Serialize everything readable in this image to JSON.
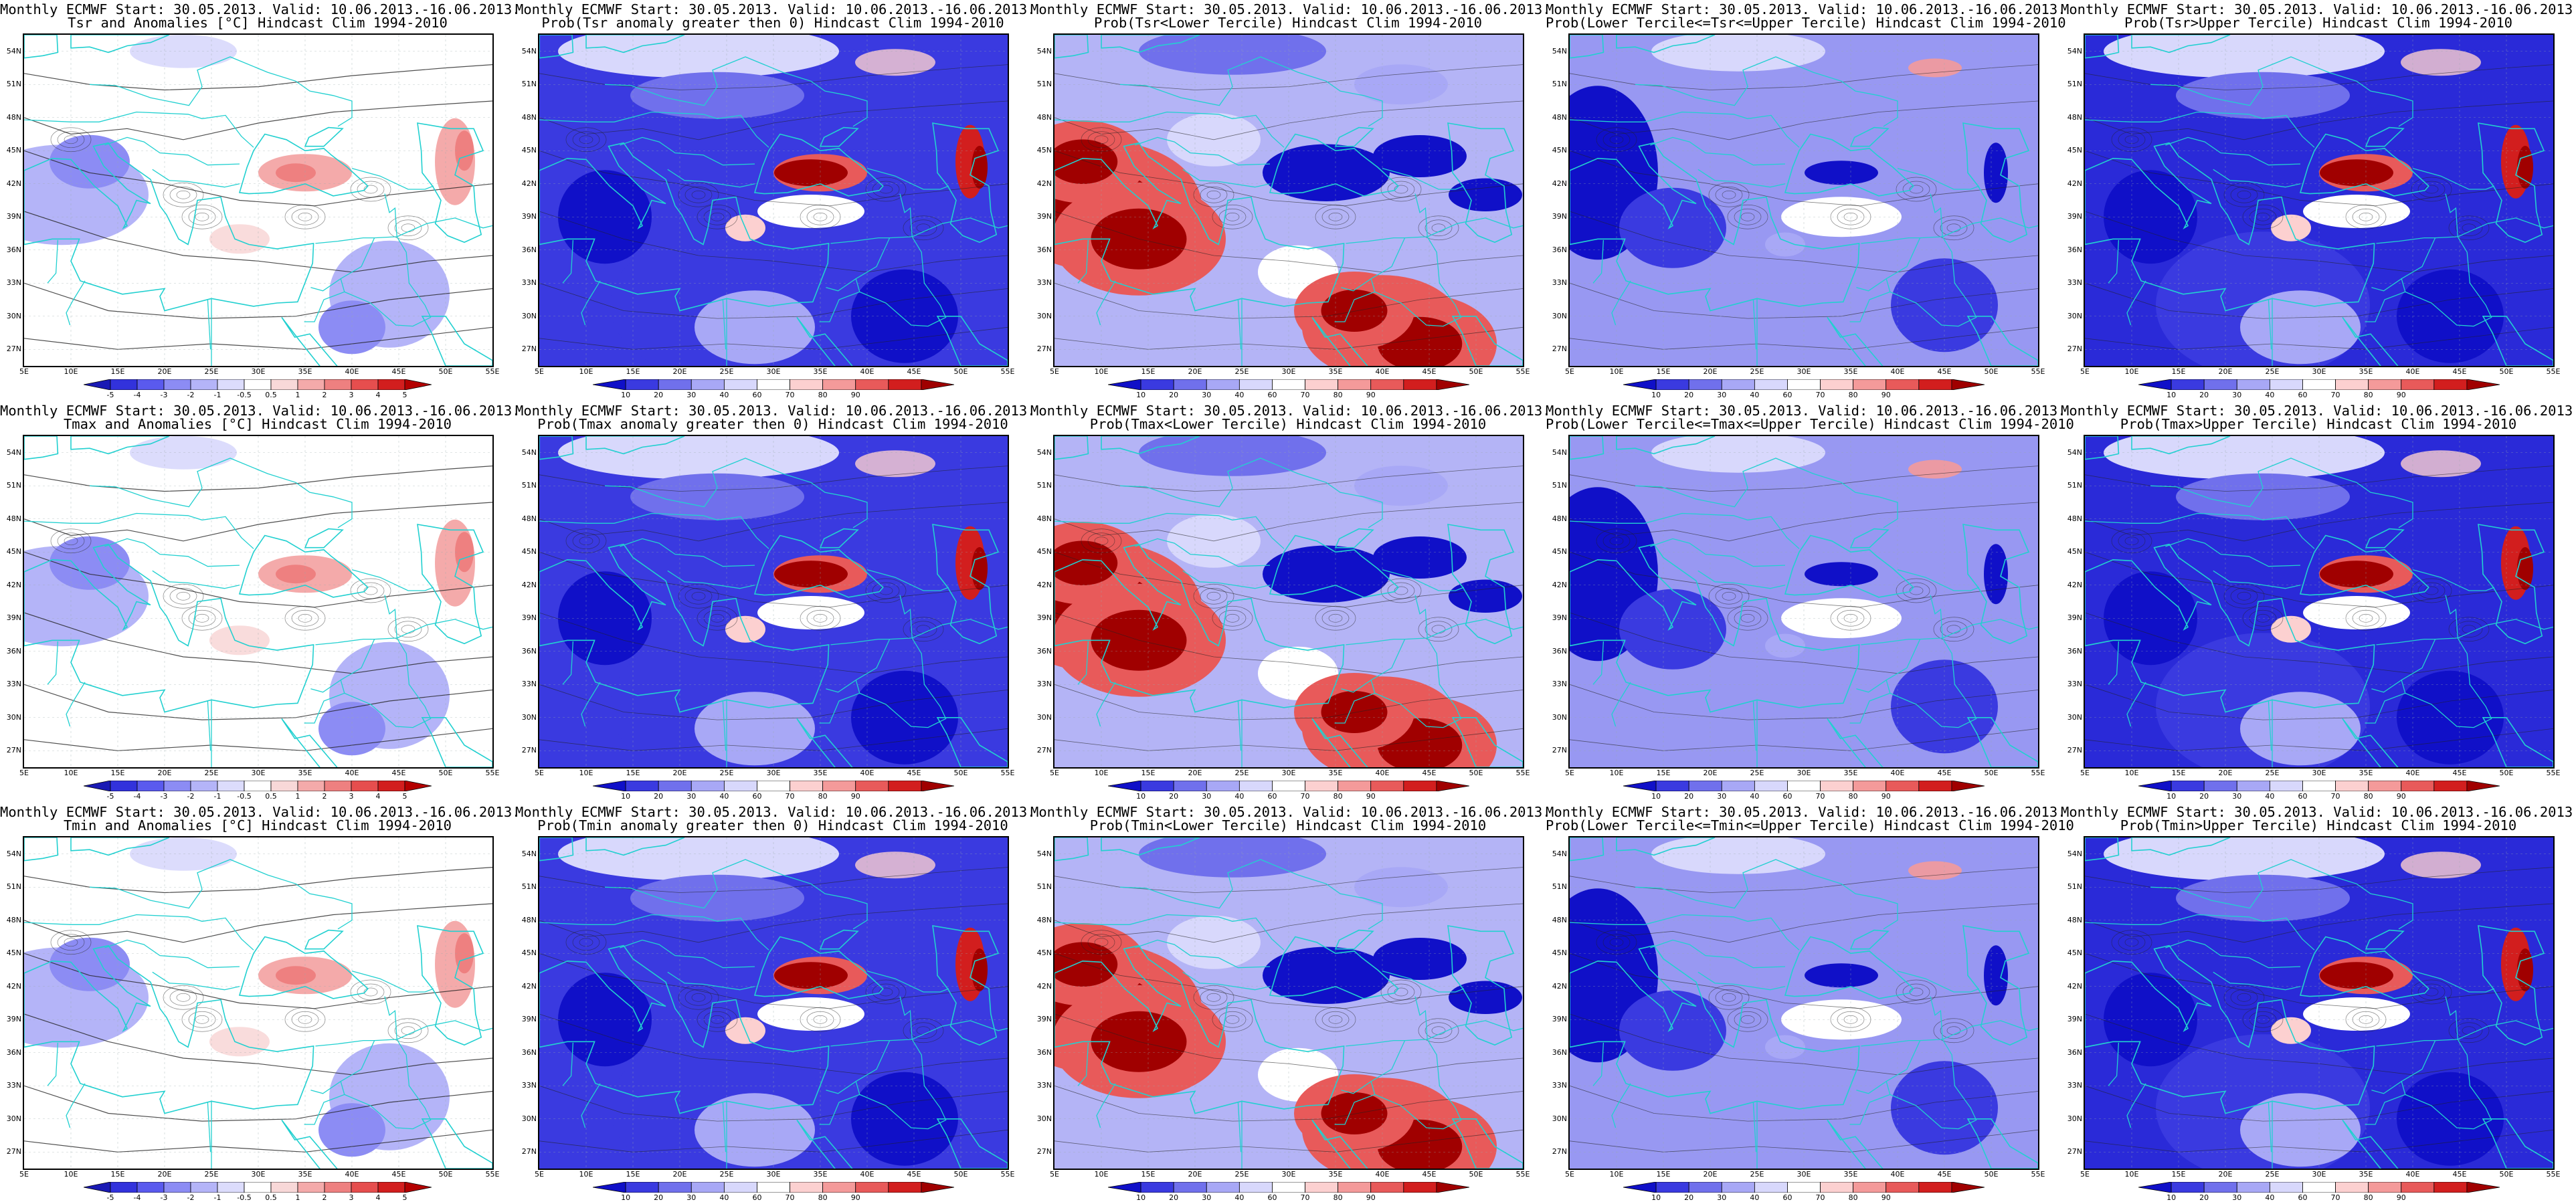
{
  "layout": {
    "columns": 5,
    "rows": 3
  },
  "map_axes": {
    "lon_range": [
      5,
      55
    ],
    "lat_range": [
      25.5,
      55.5
    ],
    "lon_labels": [
      "5E",
      "10E",
      "15E",
      "20E",
      "25E",
      "30E",
      "35E",
      "40E",
      "45E",
      "50E",
      "55E"
    ],
    "lat_labels": [
      "54N",
      "51N",
      "48N",
      "45N",
      "42N",
      "39N",
      "36N",
      "33N",
      "30N",
      "27N"
    ]
  },
  "scales": {
    "anomaly": {
      "colors": [
        "#1a1ab4",
        "#3232dc",
        "#5a5aee",
        "#8c8cf4",
        "#b4b4f8",
        "#dcdcfc",
        "#ffffff",
        "#f8d8d8",
        "#f4aaaa",
        "#ee8080",
        "#e64e4e",
        "#d21e1e",
        "#b40000"
      ],
      "labels": [
        "-5",
        "-4",
        "-3",
        "-2",
        "-1",
        "-0.5",
        "0.5",
        "1",
        "2",
        "3",
        "4",
        "5"
      ]
    },
    "probability": {
      "colors": [
        "#1010c8",
        "#3a3ae0",
        "#7070ec",
        "#a8a8f6",
        "#d8d8fc",
        "#ffffff",
        "#fcd0d0",
        "#f49a9a",
        "#e85a5a",
        "#d21e1e",
        "#a00000"
      ],
      "labels": [
        "10",
        "20",
        "30",
        "40",
        "60",
        "70",
        "80",
        "90"
      ]
    }
  },
  "panels": [
    {
      "title1": "Monthly ECMWF Start: 30.05.2013. Valid: 10.06.2013.-16.06.2013.",
      "title2": "Tsr and Anomalies [°C] Hindcast Clim 1994-2010",
      "scale": "anomaly",
      "pattern": "anom"
    },
    {
      "title1": "Monthly ECMWF Start: 30.05.2013. Valid: 10.06.2013.-16.06.2013.",
      "title2": "Prob(Tsr anomaly greater then 0) Hindcast Clim 1994-2010",
      "scale": "probability",
      "pattern": "above"
    },
    {
      "title1": "Monthly ECMWF Start: 30.05.2013. Valid: 10.06.2013.-16.06.2013.",
      "title2": "Prob(Tsr<Lower Tercile) Hindcast Clim 1994-2010",
      "scale": "probability",
      "pattern": "lower"
    },
    {
      "title1": "Monthly ECMWF Start: 30.05.2013. Valid: 10.06.2013.-16.06.2013.",
      "title2": "Prob(Lower Tercile<=Tsr<=Upper Tercile) Hindcast Clim 1994-2010",
      "scale": "probability",
      "pattern": "middle"
    },
    {
      "title1": "Monthly ECMWF Start: 30.05.2013. Valid: 10.06.2013.-16.06.2013.",
      "title2": "Prob(Tsr>Upper Tercile) Hindcast Clim 1994-2010",
      "scale": "probability",
      "pattern": "upper"
    },
    {
      "title1": "Monthly ECMWF Start: 30.05.2013. Valid: 10.06.2013.-16.06.2013.",
      "title2": "Tmax and Anomalies [°C] Hindcast Clim 1994-2010",
      "scale": "anomaly",
      "pattern": "anom"
    },
    {
      "title1": "Monthly ECMWF Start: 30.05.2013. Valid: 10.06.2013.-16.06.2013.",
      "title2": "Prob(Tmax anomaly greater then 0) Hindcast Clim 1994-2010",
      "scale": "probability",
      "pattern": "above"
    },
    {
      "title1": "Monthly ECMWF Start: 30.05.2013. Valid: 10.06.2013.-16.06.2013.",
      "title2": "Prob(Tmax<Lower Tercile) Hindcast Clim 1994-2010",
      "scale": "probability",
      "pattern": "lower"
    },
    {
      "title1": "Monthly ECMWF Start: 30.05.2013. Valid: 10.06.2013.-16.06.2013.",
      "title2": "Prob(Lower Tercile<=Tmax<=Upper Tercile) Hindcast Clim 1994-2010",
      "scale": "probability",
      "pattern": "middle"
    },
    {
      "title1": "Monthly ECMWF Start: 30.05.2013. Valid: 10.06.2013.-16.06.2013.",
      "title2": "Prob(Tmax>Upper Tercile) Hindcast Clim 1994-2010",
      "scale": "probability",
      "pattern": "upper"
    },
    {
      "title1": "Monthly ECMWF Start: 30.05.2013. Valid: 10.06.2013.-16.06.2013.",
      "title2": "Tmin and Anomalies [°C] Hindcast Clim 1994-2010",
      "scale": "anomaly",
      "pattern": "anom"
    },
    {
      "title1": "Monthly ECMWF Start: 30.05.2013. Valid: 10.06.2013.-16.06.2013.",
      "title2": "Prob(Tmin anomaly greater then 0) Hindcast Clim 1994-2010",
      "scale": "probability",
      "pattern": "above"
    },
    {
      "title1": "Monthly ECMWF Start: 30.05.2013. Valid: 10.06.2013.-16.06.2013.",
      "title2": "Prob(Tmin<Lower Tercile) Hindcast Clim 1994-2010",
      "scale": "probability",
      "pattern": "lower"
    },
    {
      "title1": "Monthly ECMWF Start: 30.05.2013. Valid: 10.06.2013.-16.06.2013.",
      "title2": "Prob(Lower Tercile<=Tmin<=Upper Tercile) Hindcast Clim 1994-2010",
      "scale": "probability",
      "pattern": "middle"
    },
    {
      "title1": "Monthly ECMWF Start: 30.05.2013. Valid: 10.06.2013.-16.06.2013.",
      "title2": "Prob(Tmin>Upper Tercile) Hindcast Clim 1994-2010",
      "scale": "probability",
      "pattern": "upper"
    }
  ]
}
